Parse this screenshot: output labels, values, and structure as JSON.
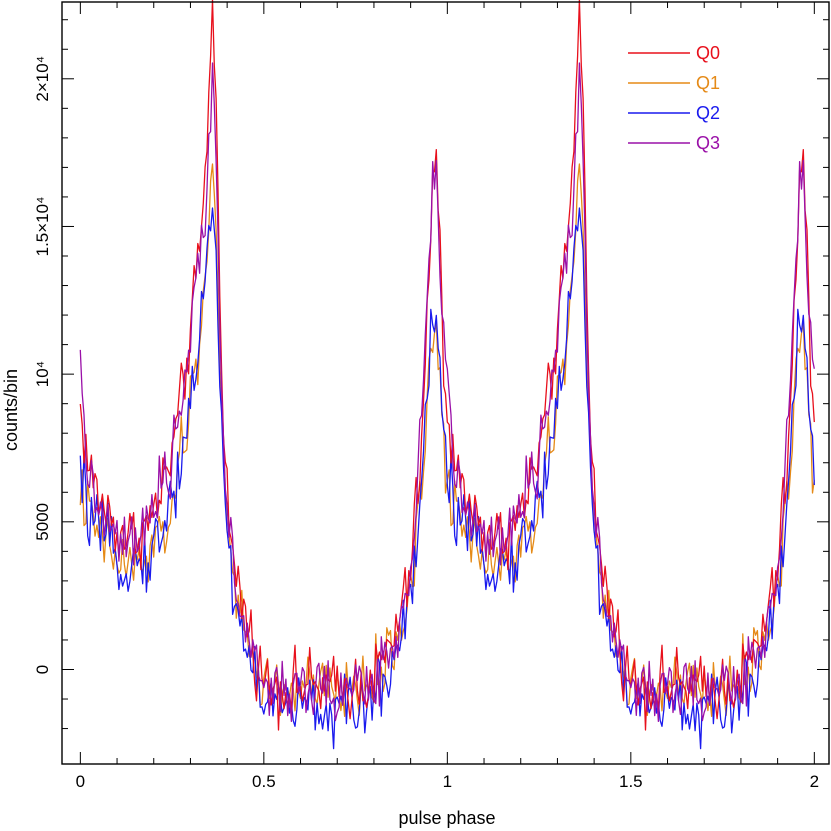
{
  "chart_data": {
    "type": "line",
    "xlabel": "pulse phase",
    "ylabel": "counts/bin",
    "xlim": [
      -0.05,
      2.04
    ],
    "ylim": [
      -3200,
      22600
    ],
    "grid": false,
    "legend_position": "top-right",
    "x_ticks": [
      {
        "value": 0,
        "label": "0"
      },
      {
        "value": 0.5,
        "label": "0.5"
      },
      {
        "value": 1,
        "label": "1"
      },
      {
        "value": 1.5,
        "label": "1.5"
      },
      {
        "value": 2,
        "label": "2"
      }
    ],
    "y_ticks": [
      {
        "value": 0,
        "label": "0"
      },
      {
        "value": 5000,
        "label": "5000"
      },
      {
        "value": 10000,
        "label": "10⁴"
      },
      {
        "value": 15000,
        "label": "1.5×10⁴"
      },
      {
        "value": 20000,
        "label": "2×10⁴"
      }
    ],
    "series": [
      {
        "name": "Q0",
        "color": "#e8101c",
        "x": [
          0,
          0.02,
          0.05,
          0.08,
          0.1,
          0.13,
          0.16,
          0.19,
          0.22,
          0.25,
          0.28,
          0.3,
          0.32,
          0.34,
          0.35,
          0.36,
          0.37,
          0.38,
          0.39,
          0.4,
          0.41,
          0.42,
          0.44,
          0.47,
          0.5,
          0.55,
          0.6,
          0.65,
          0.7,
          0.75,
          0.8,
          0.85,
          0.88,
          0.9,
          0.92,
          0.94,
          0.95,
          0.96,
          0.97,
          0.98,
          0.99,
          1
        ],
        "y": [
          8800,
          7000,
          5800,
          5200,
          4700,
          4500,
          4600,
          5000,
          6000,
          7300,
          9500,
          11500,
          13500,
          16500,
          19500,
          22500,
          19000,
          13000,
          8500,
          6000,
          4300,
          3300,
          2400,
          800,
          -400,
          -600,
          -500,
          -600,
          -700,
          -500,
          -300,
          900,
          2200,
          3500,
          6000,
          10000,
          13500,
          16500,
          17200,
          14000,
          10500,
          8800
        ]
      },
      {
        "name": "Q1",
        "color": "#e58a17",
        "x": [
          0,
          0.02,
          0.05,
          0.08,
          0.1,
          0.13,
          0.16,
          0.19,
          0.22,
          0.25,
          0.28,
          0.3,
          0.32,
          0.34,
          0.35,
          0.36,
          0.37,
          0.38,
          0.39,
          0.4,
          0.41,
          0.42,
          0.44,
          0.47,
          0.5,
          0.55,
          0.6,
          0.65,
          0.7,
          0.75,
          0.8,
          0.85,
          0.88,
          0.9,
          0.92,
          0.94,
          0.95,
          0.96,
          0.97,
          0.98,
          0.99,
          1
        ],
        "y": [
          6200,
          5300,
          4500,
          4000,
          3700,
          3500,
          3500,
          3800,
          4500,
          5500,
          7500,
          9000,
          10500,
          13000,
          15500,
          17500,
          15000,
          10500,
          7000,
          4800,
          3500,
          2600,
          1700,
          400,
          -500,
          -700,
          -600,
          -700,
          -800,
          -600,
          -400,
          600,
          1700,
          2800,
          5000,
          8000,
          10000,
          11500,
          11000,
          9500,
          7500,
          6200
        ]
      },
      {
        "name": "Q2",
        "color": "#1a1aee",
        "x": [
          0,
          0.02,
          0.05,
          0.08,
          0.1,
          0.13,
          0.16,
          0.19,
          0.22,
          0.25,
          0.28,
          0.3,
          0.32,
          0.34,
          0.35,
          0.36,
          0.37,
          0.38,
          0.39,
          0.4,
          0.41,
          0.42,
          0.44,
          0.47,
          0.5,
          0.55,
          0.6,
          0.65,
          0.7,
          0.75,
          0.8,
          0.85,
          0.88,
          0.9,
          0.92,
          0.94,
          0.95,
          0.96,
          0.97,
          0.98,
          0.99,
          1
        ],
        "y": [
          6500,
          5400,
          4600,
          4100,
          3800,
          3600,
          3600,
          3900,
          4600,
          5700,
          7600,
          9200,
          10800,
          13000,
          14800,
          15800,
          14000,
          10000,
          6800,
          4700,
          3300,
          2400,
          1400,
          0,
          -1000,
          -1300,
          -1200,
          -1300,
          -1500,
          -1300,
          -1000,
          300,
          1500,
          2700,
          5000,
          8300,
          10500,
          12500,
          12000,
          10000,
          7800,
          6500
        ]
      },
      {
        "name": "Q3",
        "color": "#9a10a8",
        "x": [
          0,
          0.02,
          0.05,
          0.08,
          0.1,
          0.13,
          0.16,
          0.19,
          0.22,
          0.25,
          0.28,
          0.3,
          0.32,
          0.34,
          0.35,
          0.36,
          0.37,
          0.38,
          0.39,
          0.4,
          0.41,
          0.42,
          0.44,
          0.47,
          0.5,
          0.55,
          0.6,
          0.65,
          0.7,
          0.75,
          0.8,
          0.85,
          0.88,
          0.9,
          0.92,
          0.94,
          0.95,
          0.96,
          0.97,
          0.98,
          0.99,
          1
        ],
        "y": [
          9800,
          6900,
          5300,
          4700,
          4300,
          4200,
          4400,
          4900,
          5900,
          7200,
          9500,
          11300,
          13000,
          15500,
          17800,
          20500,
          17500,
          12000,
          7800,
          5400,
          3900,
          2900,
          1900,
          500,
          -500,
          -700,
          -600,
          -700,
          -800,
          -600,
          -400,
          800,
          2200,
          3500,
          6300,
          10500,
          14000,
          17000,
          16900,
          14000,
          10800,
          9800
        ]
      }
    ]
  }
}
